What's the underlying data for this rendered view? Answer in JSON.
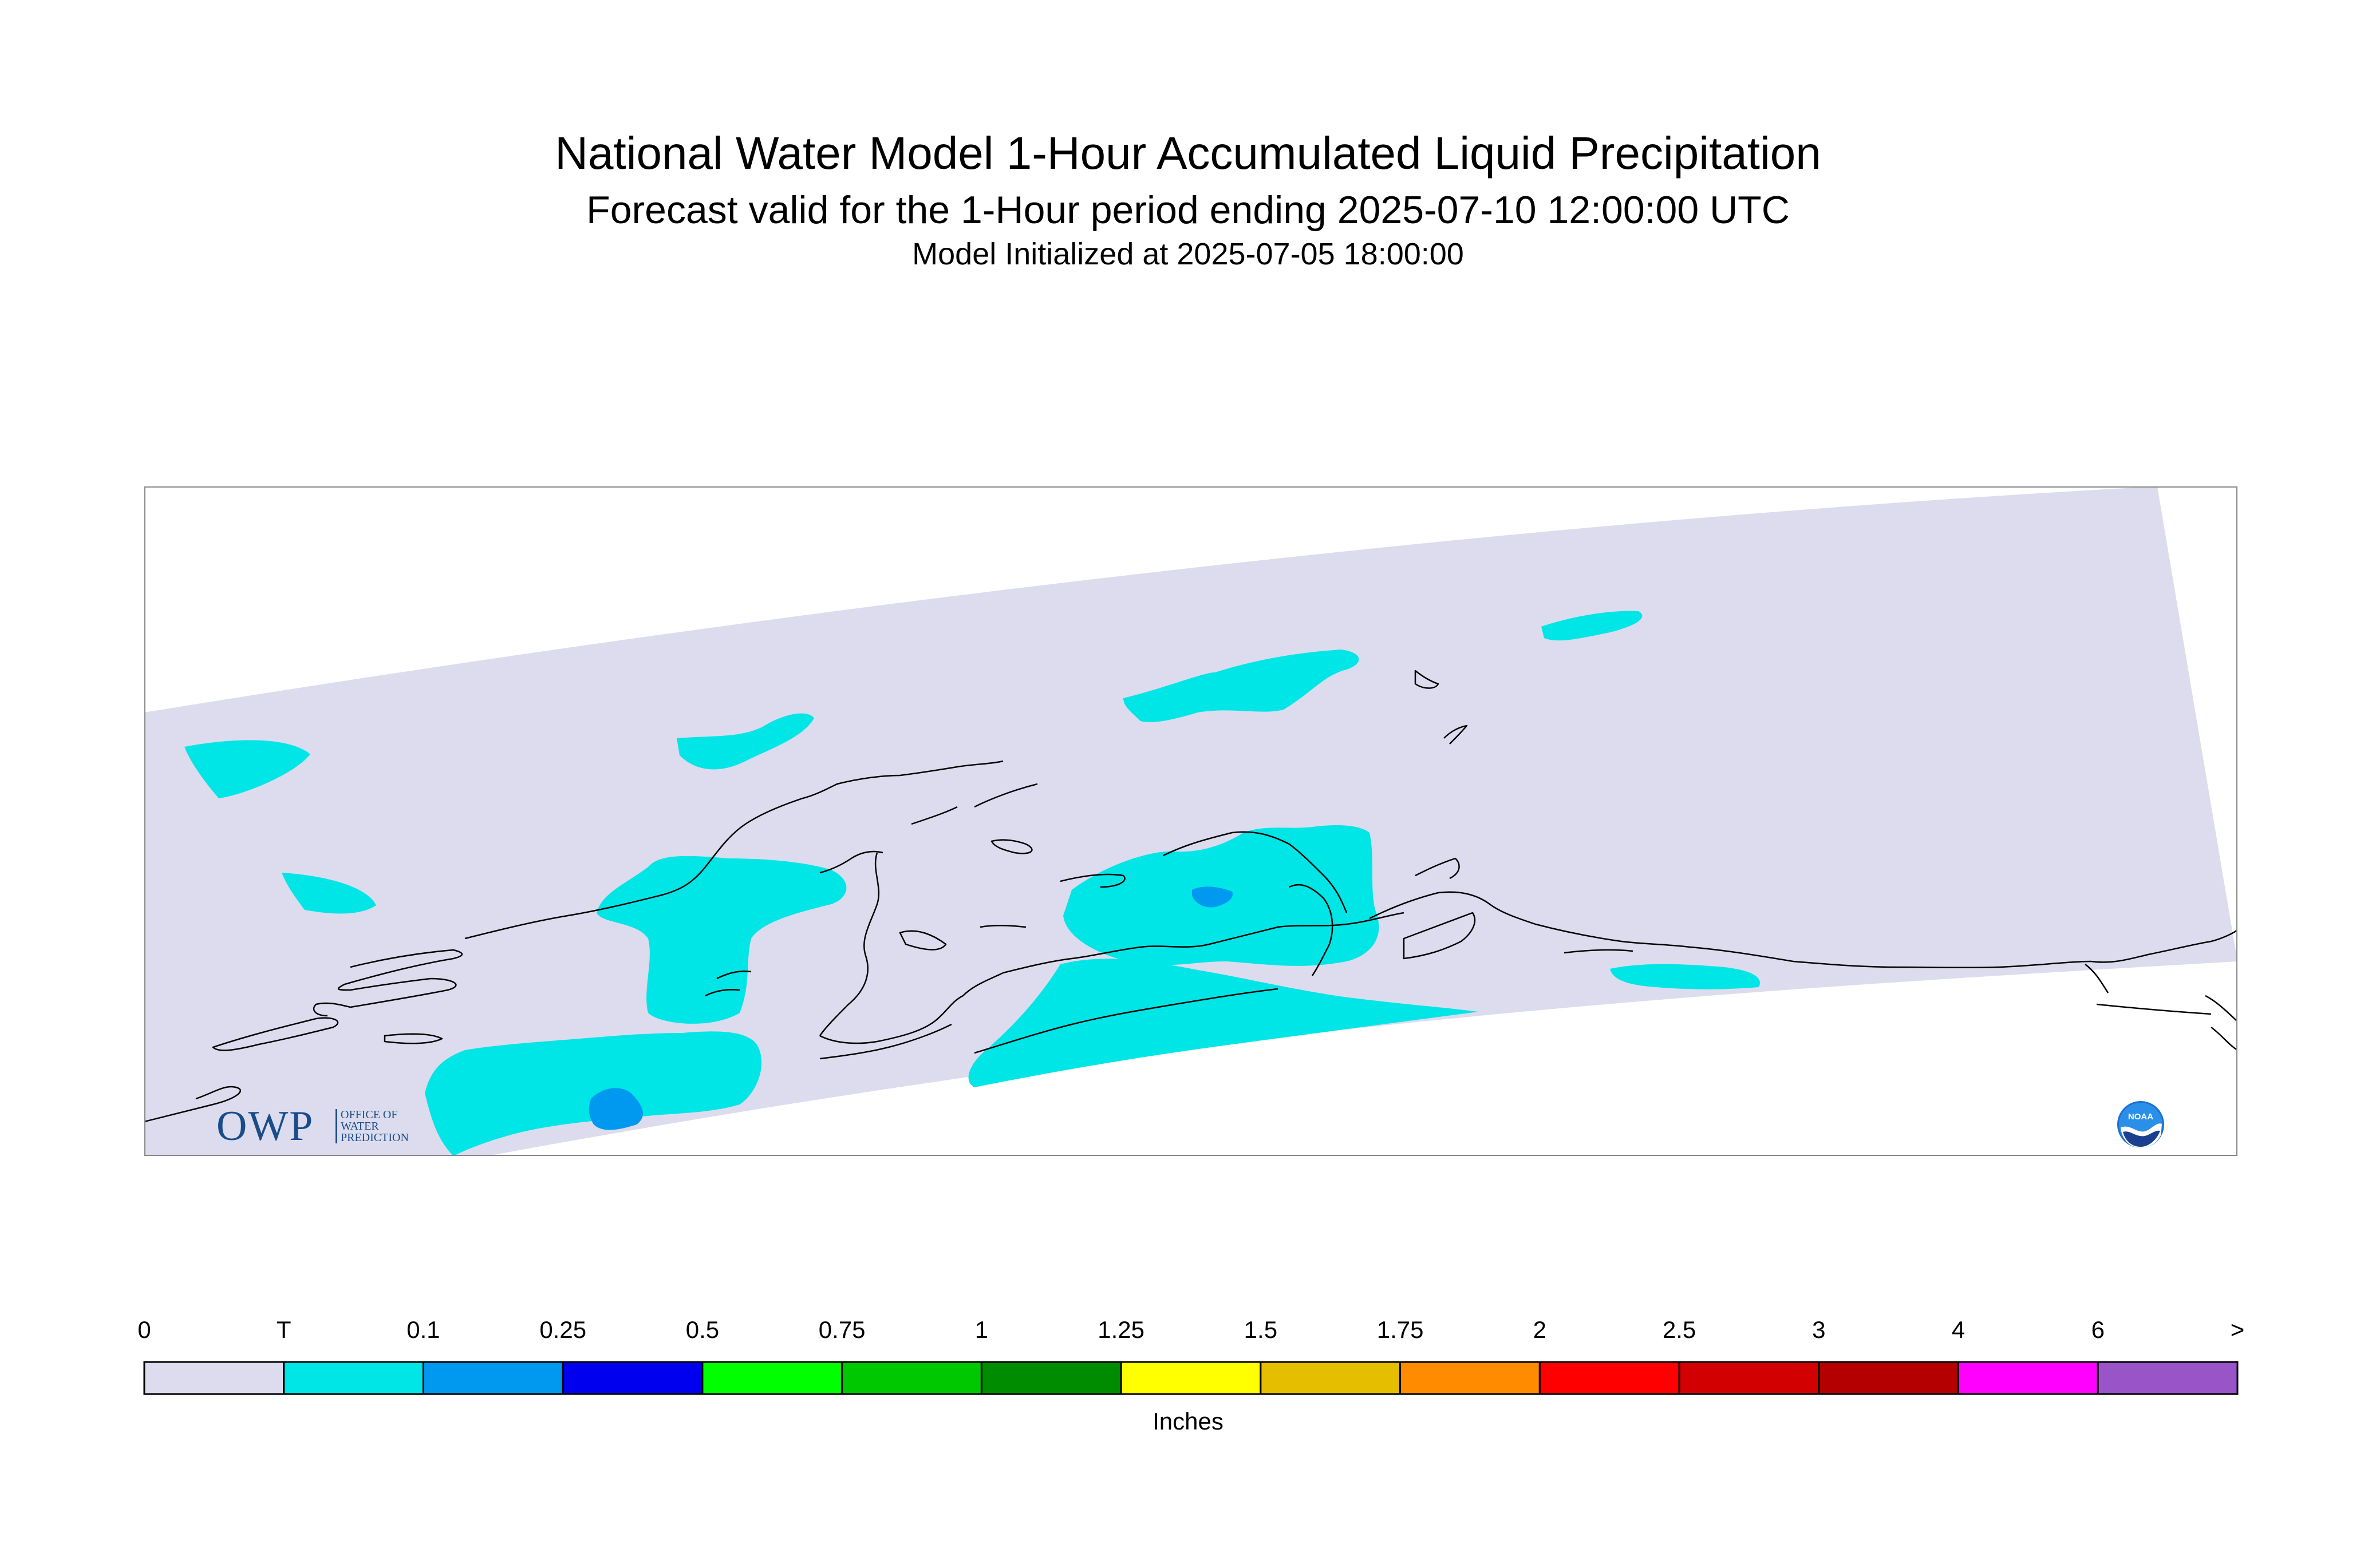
{
  "title": {
    "line1": "National Water Model 1-Hour Accumulated Liquid Precipitation",
    "line2": "Forecast valid for the 1-Hour period ending 2025-07-10 12:00:00 UTC",
    "line3": "Model Initialized at 2025-07-05 18:00:00"
  },
  "legend": {
    "units": "Inches",
    "tick_labels": [
      "0",
      "T",
      "0.1",
      "0.25",
      "0.5",
      "0.75",
      "1",
      "1.25",
      "1.5",
      "1.75",
      "2",
      "2.5",
      "3",
      "4",
      "6",
      ">"
    ],
    "colors": [
      "#dcdcee",
      "#00e5e5",
      "#0099f0",
      "#0000ee",
      "#00ff00",
      "#00c800",
      "#008c00",
      "#ffff00",
      "#e6be00",
      "#ff8c00",
      "#ff0000",
      "#d20000",
      "#b40000",
      "#ff00ff",
      "#9955c8"
    ]
  },
  "logos": {
    "owp_big": "OWP",
    "owp_small": [
      "OFFICE OF",
      "WATER",
      "PREDICTION"
    ],
    "noaa": "NOAA"
  },
  "map": {
    "background_color": "#dcdcee",
    "coastline_color": "#000000"
  }
}
